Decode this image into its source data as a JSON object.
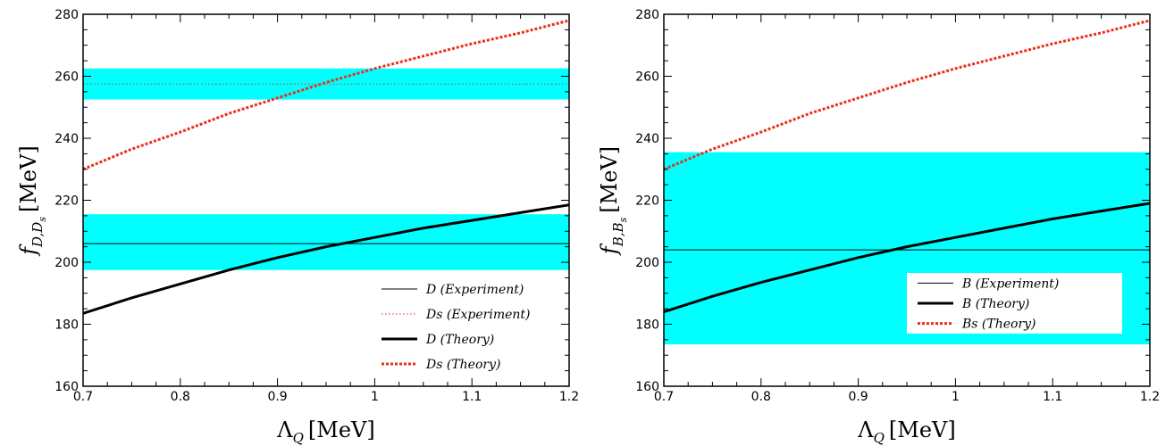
{
  "chart_data": [
    {
      "type": "line",
      "xlabel": {
        "main": "Λ",
        "sub": "Q",
        "unit": "[MeV]"
      },
      "ylabel": {
        "main": "f",
        "sub": "D,D",
        "subsub": "s",
        "unit": "[MeV]"
      },
      "xlim": [
        0.7,
        1.2
      ],
      "ylim": [
        160,
        280
      ],
      "xticks": [
        0.7,
        0.8,
        0.9,
        1.0,
        1.1,
        1.2
      ],
      "xtick_labels": [
        "0.7",
        "0.8",
        "0.9",
        "1",
        "1.1",
        "1.2"
      ],
      "yticks": [
        160,
        180,
        200,
        220,
        240,
        260,
        280
      ],
      "ytick_labels": [
        "160",
        "180",
        "200",
        "220",
        "240",
        "260",
        "280"
      ],
      "grid": false,
      "legend_position": "bottom-right",
      "bands": [
        {
          "lower": 197.5,
          "upper": 215.5,
          "color": "#00ffff"
        },
        {
          "lower": 252.5,
          "upper": 262.5,
          "color": "#00ffff"
        }
      ],
      "series": [
        {
          "name": "D (Experiment)",
          "style": "thin-solid",
          "color": "#000000",
          "x": [
            0.7,
            1.2
          ],
          "y": [
            206,
            206
          ]
        },
        {
          "name": "Ds (Experiment)",
          "style": "thin-dotted",
          "color": "#e8301a",
          "x": [
            0.7,
            1.2
          ],
          "y": [
            257.5,
            257.5
          ]
        },
        {
          "name": "D (Theory)",
          "style": "thick-solid",
          "color": "#000000",
          "x": [
            0.7,
            0.75,
            0.8,
            0.85,
            0.9,
            0.95,
            1.0,
            1.05,
            1.1,
            1.15,
            1.2
          ],
          "y": [
            183.5,
            188.5,
            193,
            197.5,
            201.5,
            205,
            208,
            211,
            213.5,
            216,
            218.5
          ]
        },
        {
          "name": "Ds (Theory)",
          "style": "thick-dotted",
          "color": "#e8301a",
          "x": [
            0.7,
            0.75,
            0.8,
            0.85,
            0.9,
            0.95,
            1.0,
            1.05,
            1.1,
            1.15,
            1.2
          ],
          "y": [
            230,
            236.5,
            242,
            248,
            253,
            258,
            262.5,
            266.5,
            270.5,
            274,
            278
          ]
        }
      ]
    },
    {
      "type": "line",
      "xlabel": {
        "main": "Λ",
        "sub": "Q",
        "unit": "[MeV]"
      },
      "ylabel": {
        "main": "f",
        "sub": "B,B",
        "subsub": "s",
        "unit": "[MeV]"
      },
      "xlim": [
        0.7,
        1.2
      ],
      "ylim": [
        160,
        280
      ],
      "xticks": [
        0.7,
        0.8,
        0.9,
        1.0,
        1.1,
        1.2
      ],
      "xtick_labels": [
        "0.7",
        "0.8",
        "0.9",
        "1",
        "1.1",
        "1.2"
      ],
      "yticks": [
        160,
        180,
        200,
        220,
        240,
        260,
        280
      ],
      "ytick_labels": [
        "160",
        "180",
        "200",
        "220",
        "240",
        "260",
        "280"
      ],
      "grid": false,
      "legend_position": "bottom-right",
      "bands": [
        {
          "lower": 173.5,
          "upper": 235.5,
          "color": "#00ffff"
        }
      ],
      "series": [
        {
          "name": "B (Experiment)",
          "style": "thin-solid",
          "color": "#000000",
          "x": [
            0.7,
            1.2
          ],
          "y": [
            204,
            204
          ]
        },
        {
          "name": "B (Theory)",
          "style": "thick-solid",
          "color": "#000000",
          "x": [
            0.7,
            0.75,
            0.8,
            0.85,
            0.9,
            0.95,
            1.0,
            1.05,
            1.1,
            1.15,
            1.2
          ],
          "y": [
            184,
            189,
            193.5,
            197.5,
            201.5,
            205,
            208,
            211,
            214,
            216.5,
            219
          ]
        },
        {
          "name": "Bs (Theory)",
          "style": "thick-dotted",
          "color": "#e8301a",
          "x": [
            0.7,
            0.75,
            0.8,
            0.85,
            0.9,
            0.95,
            1.0,
            1.05,
            1.1,
            1.15,
            1.2
          ],
          "y": [
            230,
            236.5,
            242,
            248,
            253,
            258,
            262.5,
            266.5,
            270.5,
            274,
            278
          ]
        }
      ]
    }
  ]
}
